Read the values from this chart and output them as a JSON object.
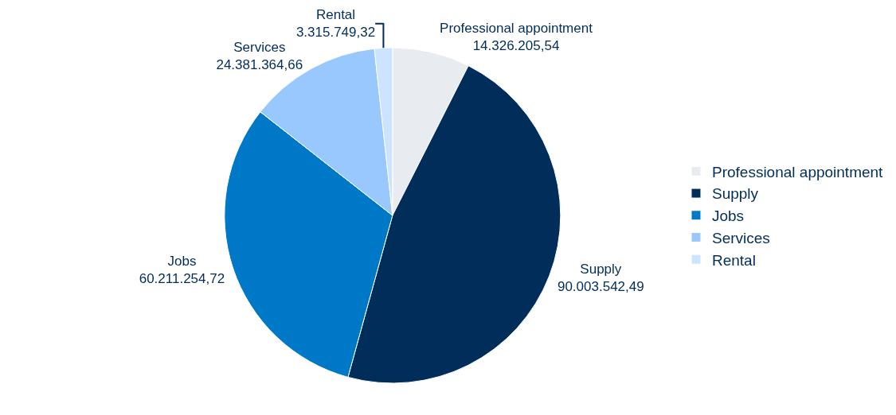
{
  "chart_data": {
    "type": "pie",
    "categories": [
      "Professional appointment",
      "Supply",
      "Jobs",
      "Services",
      "Rental"
    ],
    "values": [
      14326205.54,
      90003542.49,
      60211254.72,
      24381364.66,
      3315749.32
    ],
    "value_labels": [
      "14.326.205,54",
      "90.003.542,49",
      "60.211.254,72",
      "24.381.364,66",
      "3.315.749,32"
    ],
    "colors": [
      "#e8ecf0",
      "#002d5a",
      "#0078c8",
      "#99c8ff",
      "#cce4ff"
    ],
    "legend": "right"
  }
}
